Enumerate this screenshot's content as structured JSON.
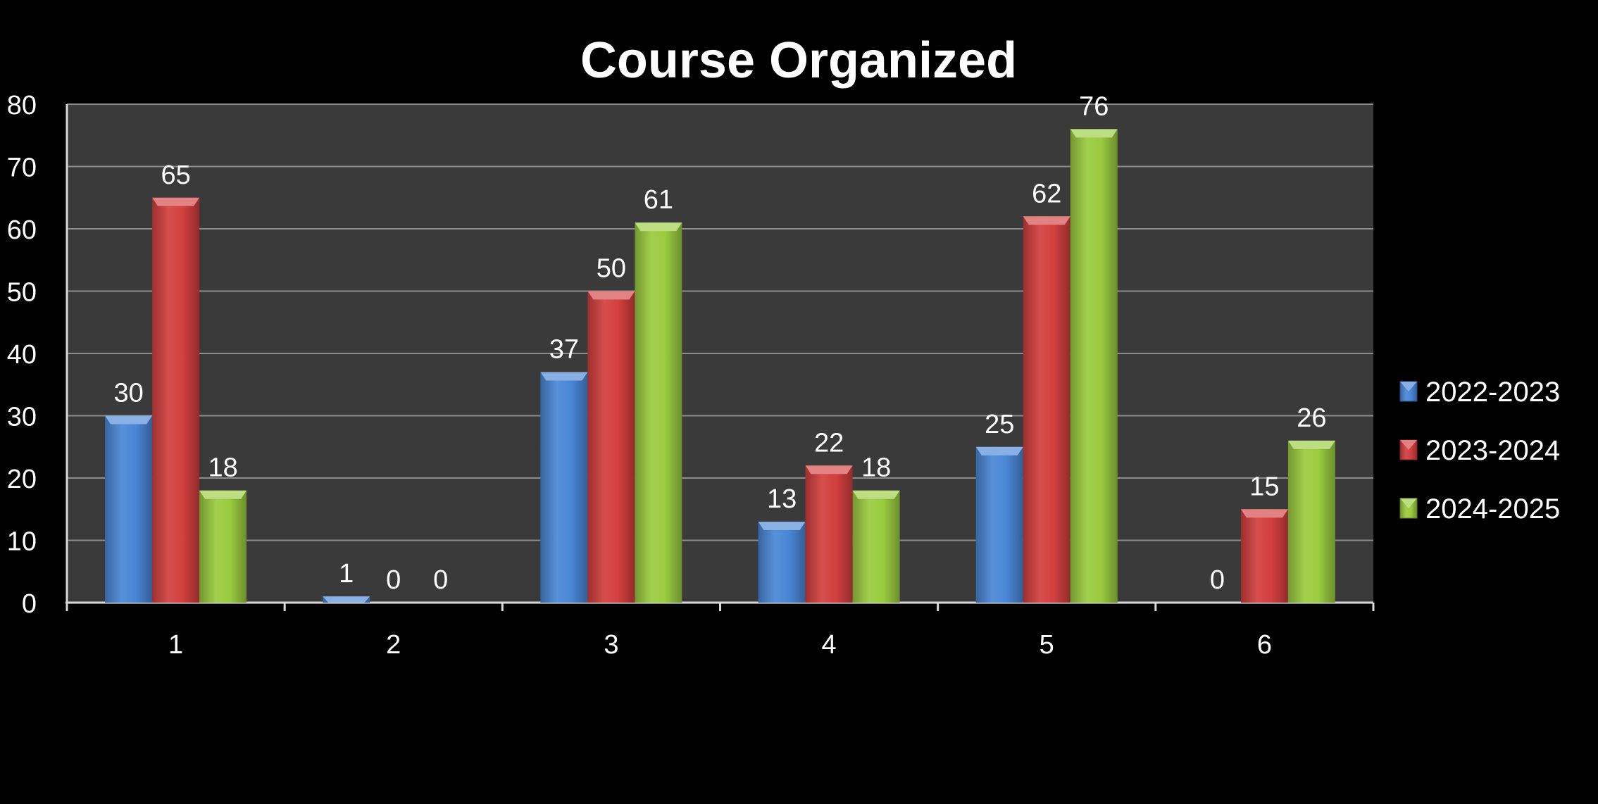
{
  "chart_data": {
    "type": "bar",
    "title": "Course Organized",
    "xlabel": "",
    "ylabel": "",
    "categories": [
      "1",
      "2",
      "3",
      "4",
      "5",
      "6"
    ],
    "series": [
      {
        "name": "2022-2023",
        "values": [
          30,
          1,
          37,
          13,
          25,
          0
        ],
        "color": "#4a86d6"
      },
      {
        "name": "2023-2024",
        "values": [
          65,
          0,
          50,
          22,
          62,
          15
        ],
        "color": "#d23f3f"
      },
      {
        "name": "2024-2025",
        "values": [
          18,
          0,
          61,
          18,
          76,
          26
        ],
        "color": "#9acb3f"
      }
    ],
    "ylim": [
      0,
      80
    ],
    "yticks": [
      "0",
      "10",
      "20",
      "30",
      "40",
      "50",
      "60",
      "70",
      "80"
    ],
    "grid": true,
    "legend_position": "right",
    "data_labels": true
  },
  "colors": {
    "background": "#000000",
    "plot_area": "#3a3a3a",
    "gridline": "#8c8c8c",
    "text": "#ffffff"
  }
}
